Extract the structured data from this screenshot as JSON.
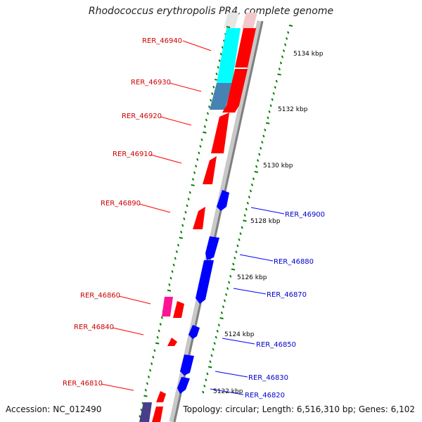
{
  "title": "Rhodococcus erythropolis PR4, complete genome",
  "footer": {
    "accession": "Accession: NC_012490",
    "summary": "Topology: circular; Length: 6,516,310 bp; Genes: 6,102"
  },
  "colors": {
    "forward_gene": "#ff0000",
    "reverse_gene": "#0000ff",
    "forward_label": "#cc0000",
    "reverse_label": "#0000cc",
    "highlight_cyan": "#00ffff",
    "highlight_steel": "#4682b4",
    "highlight_magenta": "#ff1493",
    "highlight_purple": "#483d8b",
    "tick": "#008000",
    "backbone": "#888888"
  },
  "scale_labels": [
    "5134 kbp",
    "5132 kbp",
    "5130 kbp",
    "5128 kbp",
    "5126 kbp",
    "5124 kbp",
    "5122 kbp"
  ],
  "gene_labels": [
    {
      "name": "RER_46940",
      "strand": "forward"
    },
    {
      "name": "RER_46930",
      "strand": "forward"
    },
    {
      "name": "RER_46920",
      "strand": "forward"
    },
    {
      "name": "RER_46910",
      "strand": "forward"
    },
    {
      "name": "RER_46890",
      "strand": "forward"
    },
    {
      "name": "RER_46860",
      "strand": "forward"
    },
    {
      "name": "RER_46840",
      "strand": "forward"
    },
    {
      "name": "RER_46810",
      "strand": "forward"
    },
    {
      "name": "RER_46900",
      "strand": "reverse"
    },
    {
      "name": "RER_46880",
      "strand": "reverse"
    },
    {
      "name": "RER_46870",
      "strand": "reverse"
    },
    {
      "name": "RER_46850",
      "strand": "reverse"
    },
    {
      "name": "RER_46830",
      "strand": "reverse"
    },
    {
      "name": "RER_46820",
      "strand": "reverse"
    }
  ]
}
